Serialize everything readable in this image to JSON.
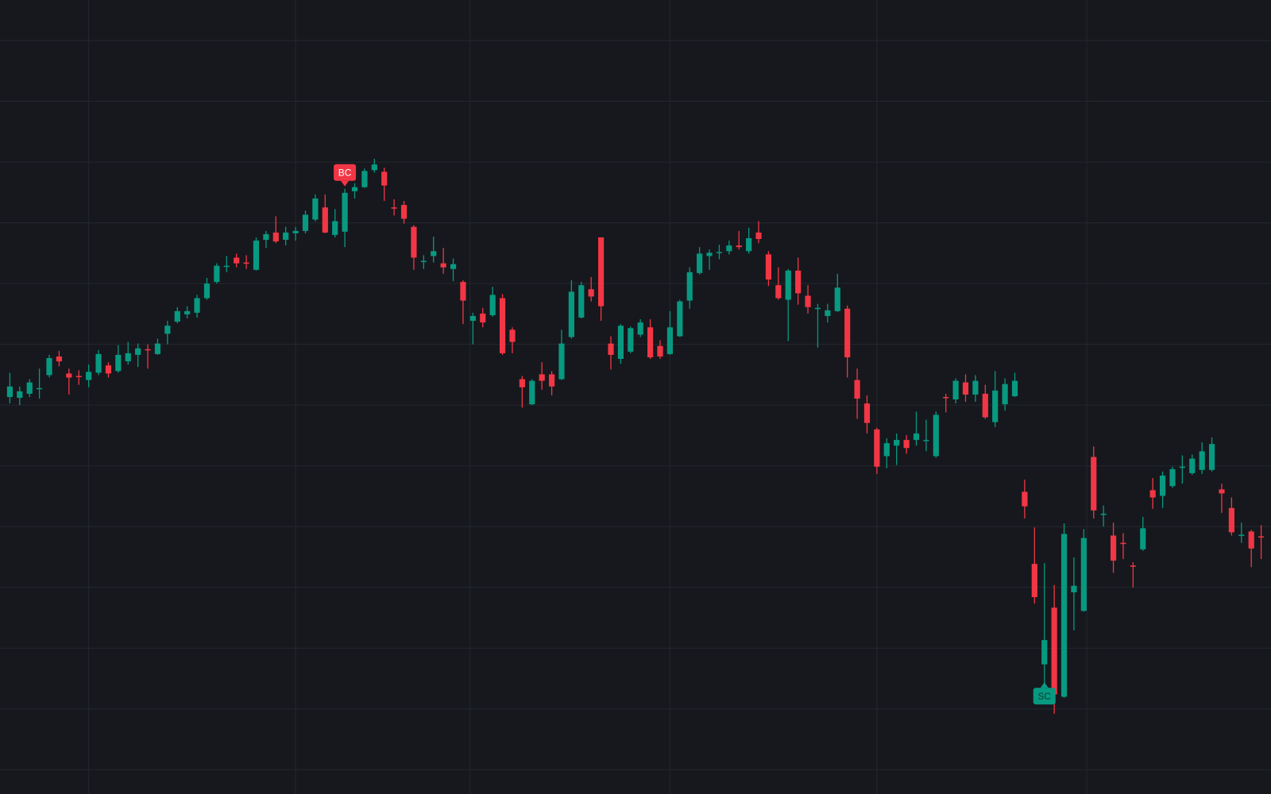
{
  "chart_data": {
    "type": "candlestick",
    "up_color": "#089981",
    "down_color": "#f23645",
    "ylim": [
      20,
      1000
    ],
    "yticks": [
      50,
      125,
      200,
      275,
      350,
      425,
      500,
      575,
      650,
      725,
      800,
      875,
      950
    ],
    "xlim": [
      -1,
      128
    ],
    "xticks": [
      8,
      29,
      46.7,
      67,
      88,
      109.3
    ],
    "grid": true,
    "open": [
      510,
      509,
      514,
      521,
      537,
      560,
      539,
      536,
      531,
      540,
      549,
      542,
      554,
      562,
      569,
      563,
      588,
      603,
      612,
      614,
      632,
      652,
      672,
      682,
      676,
      667,
      704,
      713,
      704,
      712,
      715,
      729,
      744,
      710,
      714,
      764,
      769,
      790,
      788,
      744,
      747,
      720,
      678,
      684,
      675,
      668,
      652,
      604,
      613,
      611,
      632,
      593,
      532,
      501,
      538,
      538,
      532,
      584,
      608,
      643,
      707,
      576,
      557,
      566,
      587,
      596,
      573,
      563,
      585,
      629,
      663,
      684,
      689,
      690,
      697,
      690,
      713,
      686,
      648,
      630,
      666,
      635,
      620,
      610,
      616,
      619,
      531,
      502,
      470,
      437,
      450,
      457,
      457,
      457,
      437,
      510,
      507,
      528,
      513,
      514,
      479,
      501,
      511,
      393,
      304,
      180,
      250,
      140,
      269,
      246,
      436,
      366,
      339,
      330,
      302,
      322,
      395,
      388,
      400,
      424,
      416,
      420,
      420,
      396,
      373,
      340,
      344,
      338
    ],
    "high": [
      540,
      523,
      532,
      545,
      562,
      567,
      545,
      543,
      550,
      568,
      553,
      574,
      578,
      576,
      575,
      582,
      604,
      621,
      622,
      636,
      657,
      675,
      684,
      687,
      685,
      707,
      715,
      733,
      720,
      720,
      740,
      760,
      760,
      742,
      767,
      774,
      792,
      804,
      793,
      754,
      752,
      722,
      685,
      708,
      694,
      681,
      654,
      614,
      620,
      646,
      637,
      596,
      536,
      532,
      553,
      542,
      593,
      654,
      652,
      658,
      707,
      585,
      600,
      597,
      606,
      606,
      580,
      616,
      630,
      670,
      695,
      692,
      698,
      703,
      715,
      719,
      727,
      690,
      670,
      668,
      682,
      648,
      625,
      625,
      662,
      623,
      545,
      512,
      472,
      459,
      465,
      463,
      492,
      482,
      492,
      514,
      533,
      538,
      537,
      525,
      542,
      533,
      540,
      408,
      349,
      305,
      278,
      354,
      312,
      347,
      449,
      376,
      355,
      342,
      306,
      362,
      410,
      418,
      424,
      438,
      439,
      454,
      460,
      403,
      386,
      355,
      346,
      352
    ],
    "low": [
      502,
      500,
      510,
      508,
      534,
      548,
      513,
      525,
      522,
      537,
      534,
      540,
      550,
      547,
      545,
      562,
      575,
      601,
      607,
      608,
      630,
      650,
      664,
      670,
      668,
      666,
      694,
      700,
      697,
      703,
      712,
      727,
      712,
      707,
      695,
      755,
      768,
      787,
      752,
      734,
      724,
      667,
      668,
      676,
      662,
      653,
      600,
      575,
      596,
      609,
      562,
      564,
      497,
      500,
      519,
      512,
      531,
      582,
      607,
      628,
      604,
      544,
      551,
      564,
      584,
      557,
      557,
      562,
      584,
      619,
      661,
      667,
      680,
      686,
      692,
      687,
      700,
      647,
      630,
      579,
      624,
      613,
      571,
      602,
      615,
      534,
      483,
      465,
      415,
      422,
      426,
      440,
      450,
      443,
      435,
      491,
      502,
      504,
      504,
      483,
      473,
      493,
      510,
      360,
      255,
      152,
      119,
      139,
      222,
      245,
      360,
      350,
      293,
      310,
      275,
      320,
      372,
      373,
      398,
      403,
      414,
      415,
      418,
      367,
      339,
      330,
      300,
      310
    ],
    "close": [
      523,
      517,
      528,
      521,
      558,
      554,
      534,
      535,
      541,
      563,
      539,
      562,
      564,
      570,
      568,
      576,
      598,
      616,
      616,
      632,
      650,
      672,
      672,
      675,
      675,
      703,
      711,
      702,
      713,
      715,
      735,
      755,
      713,
      727,
      762,
      769,
      789,
      797,
      771,
      743,
      730,
      682,
      678,
      690,
      670,
      674,
      629,
      610,
      602,
      636,
      564,
      578,
      522,
      530,
      530,
      523,
      576,
      640,
      648,
      634,
      622,
      562,
      598,
      595,
      602,
      559,
      560,
      596,
      628,
      664,
      687,
      688,
      689,
      697,
      695,
      706,
      705,
      655,
      632,
      666,
      638,
      621,
      620,
      617,
      645,
      559,
      508,
      478,
      424,
      453,
      457,
      447,
      465,
      457,
      488,
      509,
      530,
      513,
      530,
      485,
      518,
      526,
      530,
      375,
      263,
      210,
      143,
      341,
      277,
      336,
      370,
      366,
      308,
      329,
      301,
      348,
      386,
      413,
      421,
      424,
      434,
      443,
      452,
      391,
      343,
      340,
      323,
      337
    ],
    "annotations": [
      {
        "text": "BC",
        "index": 34,
        "anchor": "high",
        "color": "#f23645"
      },
      {
        "text": "SC",
        "index": 105,
        "anchor": "low",
        "color": "#089981"
      }
    ]
  }
}
